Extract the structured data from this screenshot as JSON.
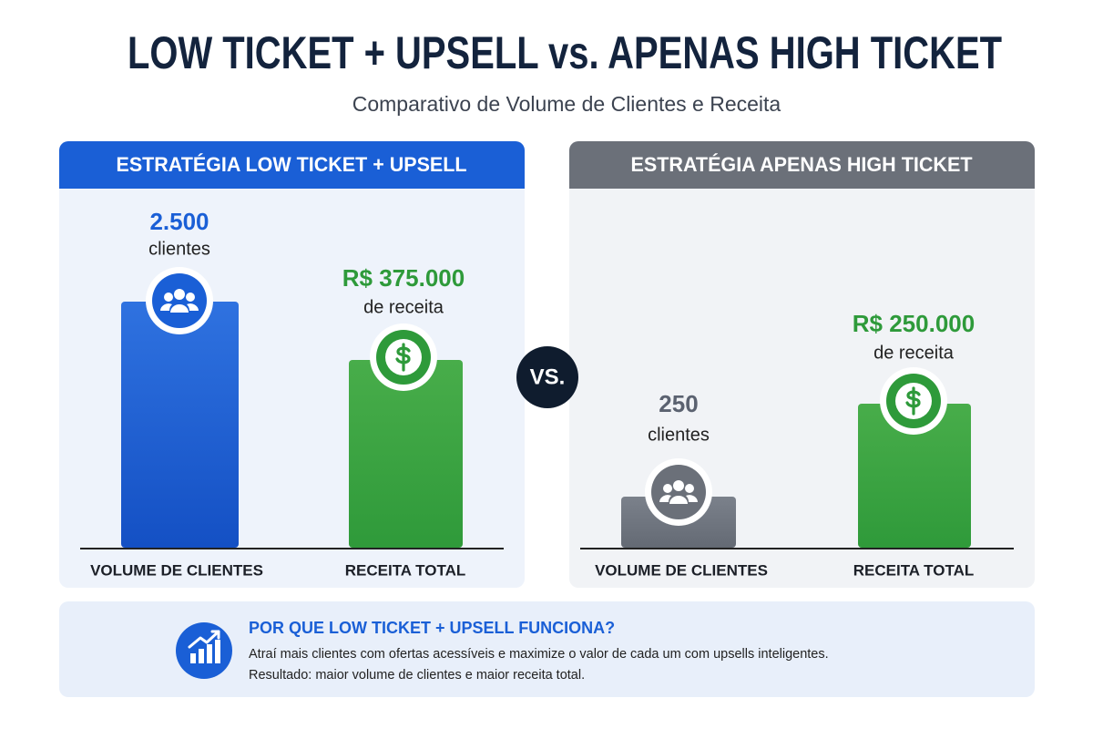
{
  "header": {
    "title": "LOW TICKET + UPSELL vs. APENAS HIGH TICKET",
    "subtitle": "Comparativo de Volume de Clientes e Receita"
  },
  "panels": [
    {
      "title": "ESTRATÉGIA LOW TICKET + UPSELL",
      "bars": [
        {
          "value": "2.500",
          "caption": "clientes",
          "label": "VOLUME DE CLIENTES"
        },
        {
          "value": "R$ 375.000",
          "caption": "de receita",
          "label": "RECEITA TOTAL"
        }
      ]
    },
    {
      "title": "ESTRATÉGIA APENAS HIGH TICKET",
      "bars": [
        {
          "value": "250",
          "caption": "clientes",
          "label": "VOLUME DE CLIENTES"
        },
        {
          "value": "R$ 250.000",
          "caption": "de receita",
          "label": "RECEITA TOTAL"
        }
      ]
    }
  ],
  "vs": "VS.",
  "footer": {
    "title": "POR QUE LOW TICKET + UPSELL FUNCIONA?",
    "lines": [
      "Atraí mais clientes com ofertas acessíveis e maximize o valor de cada um com upsells inteligentes.",
      "Resultado: maior volume de clientes e maior receita total."
    ]
  }
}
